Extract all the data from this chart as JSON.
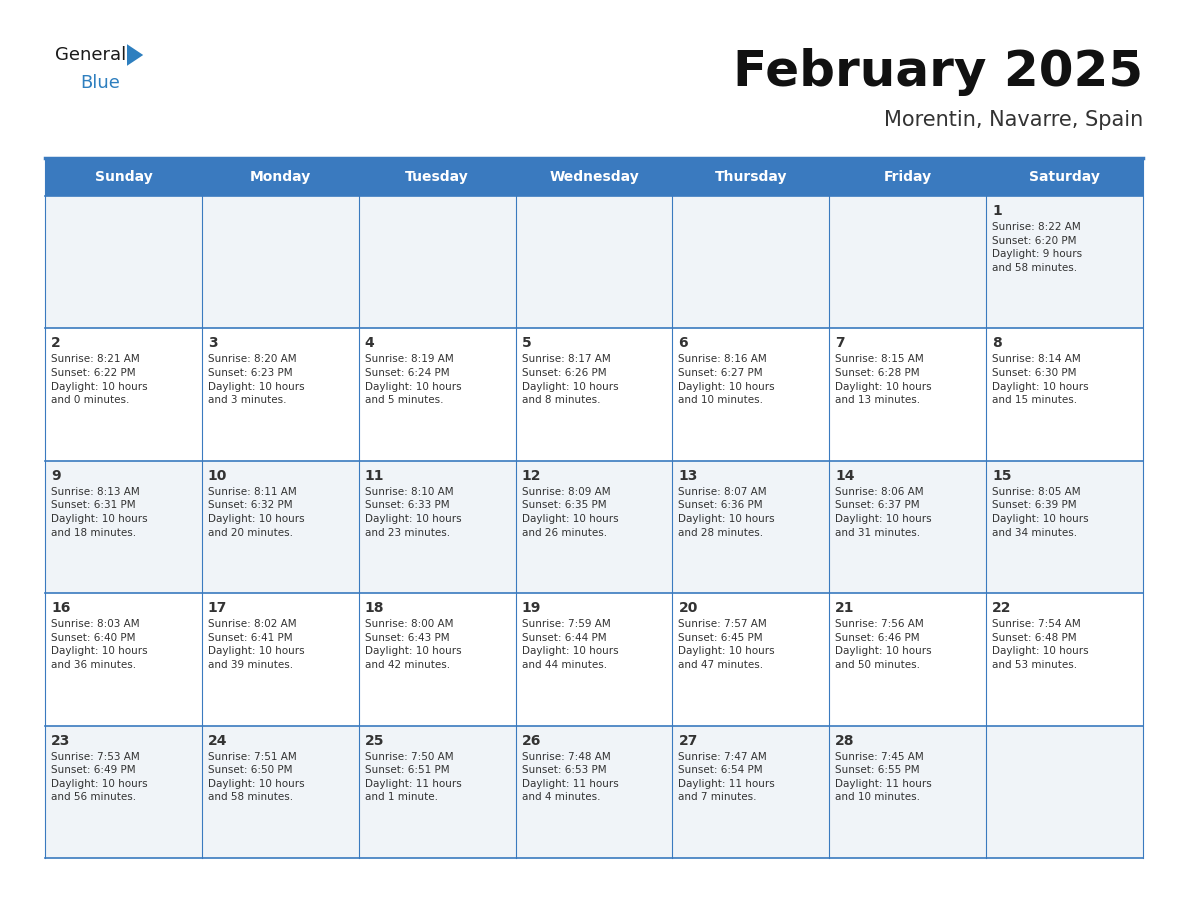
{
  "title": "February 2025",
  "subtitle": "Morentin, Navarre, Spain",
  "header_color": "#3a7abf",
  "header_text_color": "#ffffff",
  "cell_bg_even": "#f0f4f8",
  "cell_bg_odd": "#ffffff",
  "border_color": "#3a7abf",
  "text_color": "#333333",
  "day_headers": [
    "Sunday",
    "Monday",
    "Tuesday",
    "Wednesday",
    "Thursday",
    "Friday",
    "Saturday"
  ],
  "weeks": [
    [
      {
        "day": null,
        "info": null
      },
      {
        "day": null,
        "info": null
      },
      {
        "day": null,
        "info": null
      },
      {
        "day": null,
        "info": null
      },
      {
        "day": null,
        "info": null
      },
      {
        "day": null,
        "info": null
      },
      {
        "day": 1,
        "info": "Sunrise: 8:22 AM\nSunset: 6:20 PM\nDaylight: 9 hours\nand 58 minutes."
      }
    ],
    [
      {
        "day": 2,
        "info": "Sunrise: 8:21 AM\nSunset: 6:22 PM\nDaylight: 10 hours\nand 0 minutes."
      },
      {
        "day": 3,
        "info": "Sunrise: 8:20 AM\nSunset: 6:23 PM\nDaylight: 10 hours\nand 3 minutes."
      },
      {
        "day": 4,
        "info": "Sunrise: 8:19 AM\nSunset: 6:24 PM\nDaylight: 10 hours\nand 5 minutes."
      },
      {
        "day": 5,
        "info": "Sunrise: 8:17 AM\nSunset: 6:26 PM\nDaylight: 10 hours\nand 8 minutes."
      },
      {
        "day": 6,
        "info": "Sunrise: 8:16 AM\nSunset: 6:27 PM\nDaylight: 10 hours\nand 10 minutes."
      },
      {
        "day": 7,
        "info": "Sunrise: 8:15 AM\nSunset: 6:28 PM\nDaylight: 10 hours\nand 13 minutes."
      },
      {
        "day": 8,
        "info": "Sunrise: 8:14 AM\nSunset: 6:30 PM\nDaylight: 10 hours\nand 15 minutes."
      }
    ],
    [
      {
        "day": 9,
        "info": "Sunrise: 8:13 AM\nSunset: 6:31 PM\nDaylight: 10 hours\nand 18 minutes."
      },
      {
        "day": 10,
        "info": "Sunrise: 8:11 AM\nSunset: 6:32 PM\nDaylight: 10 hours\nand 20 minutes."
      },
      {
        "day": 11,
        "info": "Sunrise: 8:10 AM\nSunset: 6:33 PM\nDaylight: 10 hours\nand 23 minutes."
      },
      {
        "day": 12,
        "info": "Sunrise: 8:09 AM\nSunset: 6:35 PM\nDaylight: 10 hours\nand 26 minutes."
      },
      {
        "day": 13,
        "info": "Sunrise: 8:07 AM\nSunset: 6:36 PM\nDaylight: 10 hours\nand 28 minutes."
      },
      {
        "day": 14,
        "info": "Sunrise: 8:06 AM\nSunset: 6:37 PM\nDaylight: 10 hours\nand 31 minutes."
      },
      {
        "day": 15,
        "info": "Sunrise: 8:05 AM\nSunset: 6:39 PM\nDaylight: 10 hours\nand 34 minutes."
      }
    ],
    [
      {
        "day": 16,
        "info": "Sunrise: 8:03 AM\nSunset: 6:40 PM\nDaylight: 10 hours\nand 36 minutes."
      },
      {
        "day": 17,
        "info": "Sunrise: 8:02 AM\nSunset: 6:41 PM\nDaylight: 10 hours\nand 39 minutes."
      },
      {
        "day": 18,
        "info": "Sunrise: 8:00 AM\nSunset: 6:43 PM\nDaylight: 10 hours\nand 42 minutes."
      },
      {
        "day": 19,
        "info": "Sunrise: 7:59 AM\nSunset: 6:44 PM\nDaylight: 10 hours\nand 44 minutes."
      },
      {
        "day": 20,
        "info": "Sunrise: 7:57 AM\nSunset: 6:45 PM\nDaylight: 10 hours\nand 47 minutes."
      },
      {
        "day": 21,
        "info": "Sunrise: 7:56 AM\nSunset: 6:46 PM\nDaylight: 10 hours\nand 50 minutes."
      },
      {
        "day": 22,
        "info": "Sunrise: 7:54 AM\nSunset: 6:48 PM\nDaylight: 10 hours\nand 53 minutes."
      }
    ],
    [
      {
        "day": 23,
        "info": "Sunrise: 7:53 AM\nSunset: 6:49 PM\nDaylight: 10 hours\nand 56 minutes."
      },
      {
        "day": 24,
        "info": "Sunrise: 7:51 AM\nSunset: 6:50 PM\nDaylight: 10 hours\nand 58 minutes."
      },
      {
        "day": 25,
        "info": "Sunrise: 7:50 AM\nSunset: 6:51 PM\nDaylight: 11 hours\nand 1 minute."
      },
      {
        "day": 26,
        "info": "Sunrise: 7:48 AM\nSunset: 6:53 PM\nDaylight: 11 hours\nand 4 minutes."
      },
      {
        "day": 27,
        "info": "Sunrise: 7:47 AM\nSunset: 6:54 PM\nDaylight: 11 hours\nand 7 minutes."
      },
      {
        "day": 28,
        "info": "Sunrise: 7:45 AM\nSunset: 6:55 PM\nDaylight: 11 hours\nand 10 minutes."
      },
      {
        "day": null,
        "info": null
      }
    ]
  ],
  "logo_text_general": "General",
  "logo_text_blue": "Blue",
  "logo_color_general": "#1a1a1a",
  "logo_color_blue": "#2e7fbf",
  "logo_triangle_color": "#2e7fbf",
  "title_fontsize": 36,
  "subtitle_fontsize": 15,
  "day_header_fontsize": 10,
  "day_num_fontsize": 10,
  "cell_text_fontsize": 7.5
}
